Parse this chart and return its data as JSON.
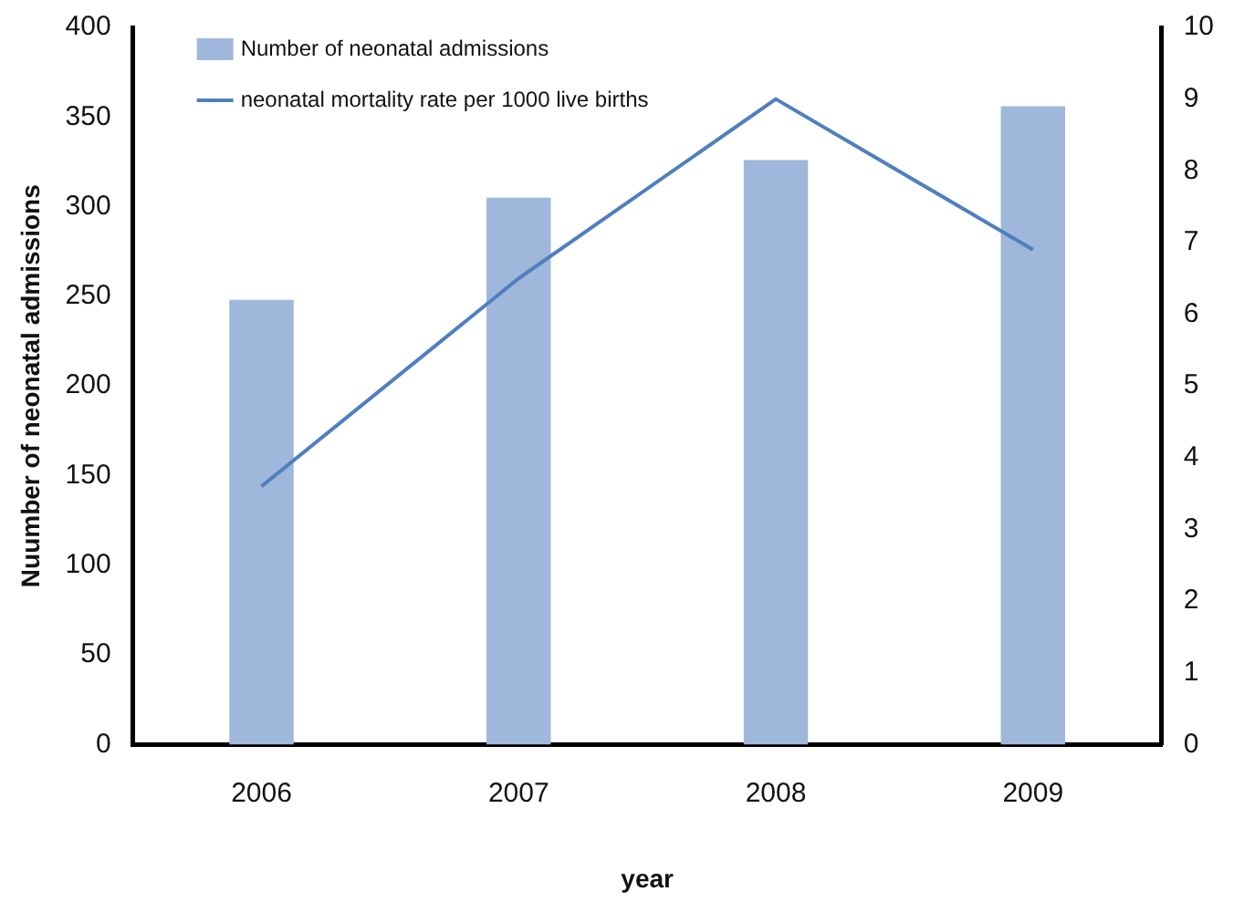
{
  "chart_data": {
    "type": "bar",
    "xlabel": "year",
    "ylabel": "Nuumber of neonatal admissions",
    "categories": [
      "2006",
      "2007",
      "2008",
      "2009"
    ],
    "series": [
      {
        "name": "Number of neonatal admissions",
        "color": "#9fb7da",
        "values": [
          248,
          305,
          326,
          356
        ]
      },
      {
        "name": "neonatal mortality rate per 1000 live births",
        "type": "line",
        "axis": "y2",
        "color": "#4f7fbd",
        "values": [
          3.6,
          6.5,
          9.0,
          6.9
        ]
      }
    ],
    "ylim": [
      0,
      400
    ],
    "yticks": [
      0,
      50,
      100,
      150,
      200,
      250,
      300,
      350,
      400
    ],
    "y2lim": [
      0,
      10
    ],
    "y2ticks": [
      0,
      1,
      2,
      3,
      4,
      5,
      6,
      7,
      8,
      9,
      10
    ],
    "grid": false,
    "legend": "top left",
    "marker": "none"
  }
}
